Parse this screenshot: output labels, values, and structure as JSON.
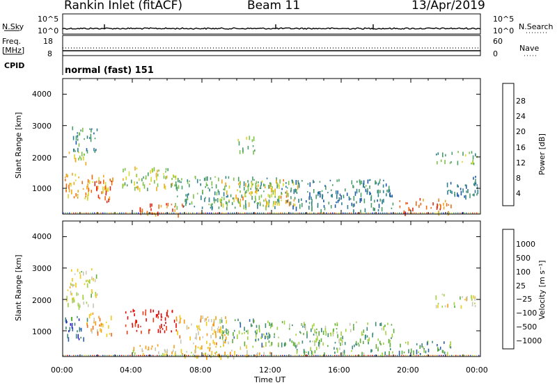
{
  "header": {
    "radar_title": "Rankin Inlet (fitACF)",
    "beam": "Beam 11",
    "date": "13/Apr/2019"
  },
  "strips": {
    "nsky": {
      "label": "N.Sky",
      "ticks": [
        "10^5",
        "10^0"
      ],
      "right_label": "N.Search",
      "right_ticks": [
        "10^5",
        "10^0"
      ]
    },
    "freq": {
      "label_line1": "Freq.",
      "label_line2": "[MHz]",
      "ticks": [
        "18",
        "8"
      ],
      "right_label": "Nave",
      "right_ticks": [
        "60",
        "0"
      ]
    },
    "cpid": {
      "label": "CPID",
      "value": "normal (fast) 151"
    }
  },
  "colors": {
    "power": [
      "#1414f0",
      "#1e5aa8",
      "#2f7f8f",
      "#4a9e6a",
      "#7dc24a",
      "#d8d82a",
      "#f0a81e",
      "#f06a14",
      "#e62814"
    ],
    "velocity": [
      "#2323c8",
      "#2a5fb0",
      "#3f8a7a",
      "#5fae3c",
      "#9fd23c",
      "#c8c8b4",
      "#f5c814",
      "#f59a14",
      "#f06a1e",
      "#ec3c14",
      "#e00a0a"
    ],
    "background": "#ffffff"
  },
  "chart_data": [
    {
      "type": "heatmap",
      "name": "power",
      "ylabel": "Slant Range [km]",
      "yticks": [
        "4000",
        "3000",
        "2000",
        "1000"
      ],
      "ylim": [
        180,
        4500
      ],
      "xlim_hours": [
        0,
        24
      ],
      "colorbar_label": "Power [dB]",
      "colorbar_ticks": [
        "28",
        "24",
        "20",
        "16",
        "12",
        "8",
        "4"
      ],
      "colorbar_range": [
        0,
        32
      ],
      "echo_regions": [
        {
          "t": [
            0.1,
            2.9
          ],
          "r": [
            700,
            1500
          ],
          "level": 0.72
        },
        {
          "t": [
            1.8,
            2.8
          ],
          "r": [
            600,
            1300
          ],
          "level": 0.9
        },
        {
          "t": [
            0.2,
            1.5
          ],
          "r": [
            1800,
            2200
          ],
          "level": 0.6
        },
        {
          "t": [
            0.5,
            2.0
          ],
          "r": [
            2200,
            3000
          ],
          "level": 0.35
        },
        {
          "t": [
            3.3,
            6.6
          ],
          "r": [
            1000,
            1700
          ],
          "level": 0.55
        },
        {
          "t": [
            4.2,
            7.0
          ],
          "r": [
            200,
            550
          ],
          "level": 0.85
        },
        {
          "t": [
            6.4,
            12.5
          ],
          "r": [
            400,
            1400
          ],
          "level": 0.38
        },
        {
          "t": [
            9.0,
            13.5
          ],
          "r": [
            500,
            1300
          ],
          "level": 0.65
        },
        {
          "t": [
            10.0,
            11.0
          ],
          "r": [
            2200,
            2700
          ],
          "level": 0.45
        },
        {
          "t": [
            12.5,
            19.0
          ],
          "r": [
            300,
            1300
          ],
          "level": 0.3
        },
        {
          "t": [
            19.3,
            22.3
          ],
          "r": [
            250,
            700
          ],
          "level": 0.85
        },
        {
          "t": [
            21.4,
            23.8
          ],
          "r": [
            1800,
            2200
          ],
          "level": 0.45
        },
        {
          "t": [
            22.0,
            23.9
          ],
          "r": [
            700,
            1400
          ],
          "level": 0.3
        }
      ]
    },
    {
      "type": "heatmap",
      "name": "velocity",
      "ylabel": "Slant Range [km]",
      "yticks": [
        "4000",
        "3000",
        "2000",
        "1000"
      ],
      "ylim": [
        180,
        4500
      ],
      "xlim_hours": [
        0,
        24
      ],
      "xticks": [
        "00:00",
        "04:00",
        "08:00",
        "12:00",
        "16:00",
        "20:00",
        "00:00"
      ],
      "xlabel": "Time UT",
      "colorbar_label": "Velocity [m s⁻¹]",
      "colorbar_ticks": [
        "1000",
        "500",
        "100",
        "25",
        "−25",
        "−100",
        "−500",
        "−1000"
      ],
      "echo_regions": [
        {
          "t": [
            0.1,
            1.4
          ],
          "r": [
            700,
            1500
          ],
          "level": 0.15
        },
        {
          "t": [
            1.3,
            2.8
          ],
          "r": [
            900,
            1600
          ],
          "level": 0.65
        },
        {
          "t": [
            0.2,
            2.0
          ],
          "r": [
            1800,
            3000
          ],
          "level": 0.5
        },
        {
          "t": [
            3.5,
            6.5
          ],
          "r": [
            1000,
            1700
          ],
          "level": 0.97
        },
        {
          "t": [
            4.0,
            12.0
          ],
          "r": [
            200,
            600
          ],
          "level": 0.55
        },
        {
          "t": [
            6.5,
            9.5
          ],
          "r": [
            600,
            1500
          ],
          "level": 0.6
        },
        {
          "t": [
            9.0,
            13.0
          ],
          "r": [
            600,
            1400
          ],
          "level": 0.3
        },
        {
          "t": [
            13.0,
            19.0
          ],
          "r": [
            300,
            1300
          ],
          "level": 0.35
        },
        {
          "t": [
            19.3,
            22.3
          ],
          "r": [
            250,
            700
          ],
          "level": 0.25
        },
        {
          "t": [
            21.4,
            23.8
          ],
          "r": [
            1800,
            2200
          ],
          "level": 0.5
        }
      ]
    }
  ]
}
